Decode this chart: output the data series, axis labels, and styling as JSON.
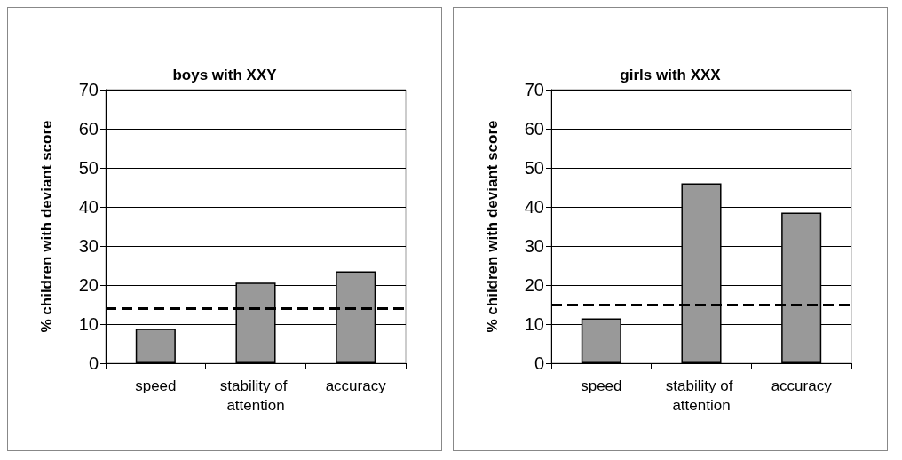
{
  "chart_data": [
    {
      "type": "bar",
      "title": "boys with XXY",
      "ylabel": "% children with deviant score",
      "categories": [
        "speed",
        "stability of attention",
        "accuracy"
      ],
      "values": [
        8.8,
        20.6,
        23.5
      ],
      "color": "#999999",
      "ylim": [
        0,
        70
      ],
      "yticks": [
        0,
        10,
        20,
        30,
        40,
        50,
        60,
        70
      ],
      "grid": "y",
      "ref_lines": [
        {
          "axis": "y",
          "value": 14,
          "label": null,
          "color": "#000000",
          "line_style": "dashed"
        }
      ]
    },
    {
      "type": "bar",
      "title": "girls with XXX",
      "ylabel": "% children with deviant score",
      "categories": [
        "speed",
        "stability of attention",
        "accuracy"
      ],
      "values": [
        11.5,
        46,
        38.5
      ],
      "color": "#999999",
      "ylim": [
        0,
        70
      ],
      "yticks": [
        0,
        10,
        20,
        30,
        40,
        50,
        60,
        70
      ],
      "grid": "y",
      "ref_lines": [
        {
          "axis": "y",
          "value": 15,
          "label": null,
          "color": "#000000",
          "line_style": "dashed"
        }
      ]
    }
  ]
}
